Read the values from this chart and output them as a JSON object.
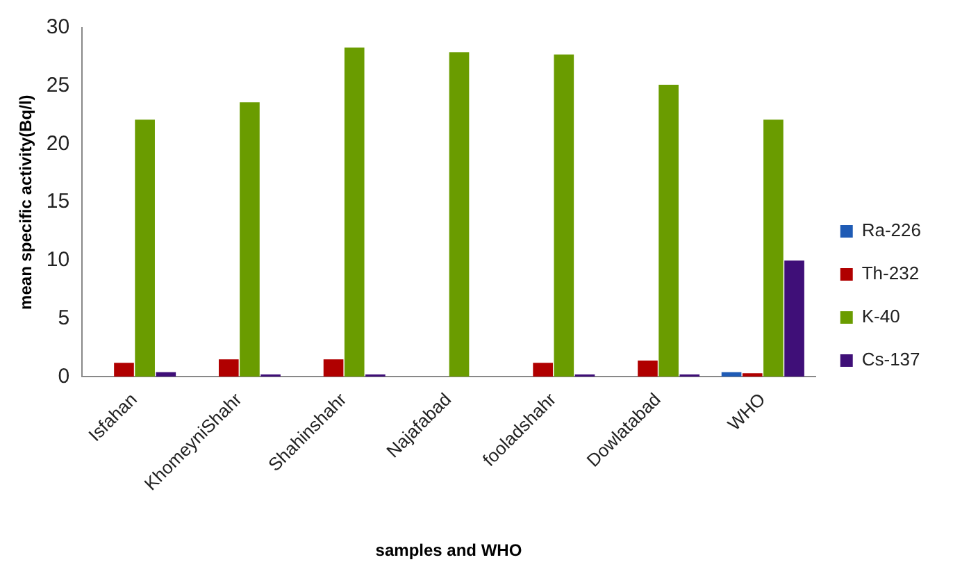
{
  "chart_data": {
    "type": "bar",
    "xlabel": "samples and WHO",
    "ylabel": "mean specific activity(Bq/l)",
    "categories": [
      "Isfahan",
      "KhomeyniShahr",
      "Shahinshahr",
      "Najafabad",
      "fooladshahr",
      "Dowlatabad",
      "WHO"
    ],
    "series": [
      {
        "name": "Ra-226",
        "color": "#1f5bb5",
        "values": [
          null,
          null,
          null,
          null,
          null,
          null,
          0.4
        ]
      },
      {
        "name": "Th-232",
        "color": "#b00000",
        "values": [
          1.2,
          1.5,
          1.5,
          null,
          1.2,
          1.4,
          0.3
        ]
      },
      {
        "name": "K-40",
        "color": "#6a9c00",
        "values": [
          22.1,
          23.6,
          28.3,
          27.9,
          27.7,
          25.1,
          22.1
        ]
      },
      {
        "name": "Cs-137",
        "color": "#3f0f78",
        "values": [
          0.4,
          0.2,
          0.2,
          null,
          0.2,
          0.2,
          10
        ]
      }
    ],
    "ylim": [
      0,
      30
    ],
    "yticks": [
      0,
      5,
      10,
      15,
      20,
      25,
      30
    ],
    "grid": false,
    "legend": "right"
  }
}
